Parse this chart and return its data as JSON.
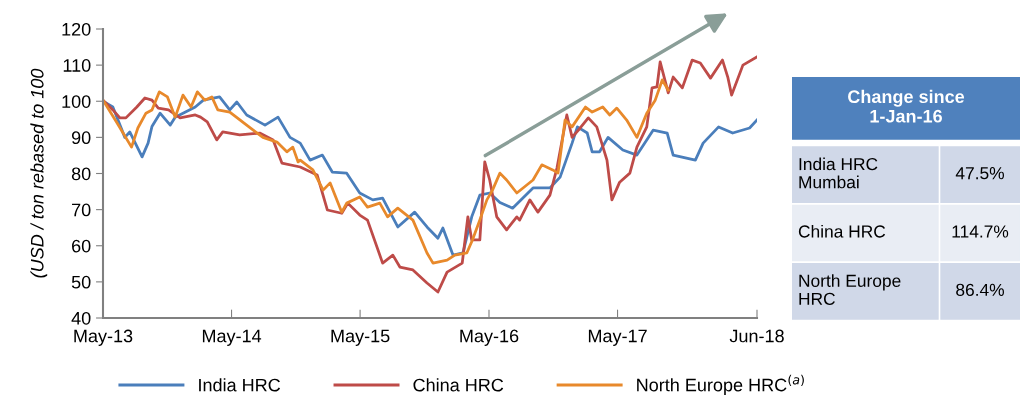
{
  "chart_data": [
    {
      "type": "line",
      "ylabel": "(USD / ton rebased to 100",
      "ylim": [
        40,
        120
      ],
      "yticks": [
        40,
        50,
        60,
        70,
        80,
        90,
        100,
        110,
        120
      ],
      "xlim": [
        "2013-05-01",
        "2018-06-01"
      ],
      "xticks": [
        {
          "value": "2013-05-01",
          "label": "May-13"
        },
        {
          "value": "2014-05-01",
          "label": "May-14"
        },
        {
          "value": "2015-05-01",
          "label": "May-15"
        },
        {
          "value": "2016-05-01",
          "label": "May-16"
        },
        {
          "value": "2017-05-01",
          "label": "May-17"
        },
        {
          "value": "2018-06-01",
          "label": "Jun-18"
        }
      ],
      "grid": false,
      "legend": "bottom",
      "marker": "none",
      "line_style": "solid",
      "series": [
        {
          "name": "India HRC",
          "color": "#4a7ebb",
          "x": [
            "2013-05-01",
            "2013-05-29",
            "2013-07-02",
            "2013-07-16",
            "2013-08-20",
            "2013-09-06",
            "2013-09-17",
            "2013-10-10",
            "2013-11-08",
            "2013-11-22",
            "2014-01-18",
            "2014-02-10",
            "2014-03-28",
            "2014-04-26",
            "2014-05-16",
            "2014-06-13",
            "2014-08-04",
            "2014-09-10",
            "2014-10-14",
            "2014-11-12",
            "2014-12-10",
            "2015-01-14",
            "2015-02-11",
            "2015-03-24",
            "2015-04-30",
            "2015-06-06",
            "2015-07-04",
            "2015-08-16",
            "2015-10-03",
            "2015-11-07",
            "2015-12-08",
            "2015-12-22",
            "2016-01-20",
            "2016-02-17",
            "2016-03-13",
            "2016-04-05",
            "2016-05-03",
            "2016-06-01",
            "2016-07-07",
            "2016-09-03",
            "2016-10-21",
            "2016-11-19",
            "2016-12-23",
            "2017-01-07",
            "2017-02-04",
            "2017-02-18",
            "2017-03-11",
            "2017-04-04",
            "2017-05-16",
            "2017-06-25",
            "2017-08-10",
            "2017-09-19",
            "2017-10-06",
            "2017-12-08",
            "2017-12-30",
            "2018-02-12",
            "2018-03-24",
            "2018-05-11",
            "2018-06-01"
          ],
          "values": [
            100,
            98.4,
            90,
            91.5,
            84.6,
            88.4,
            93,
            96.7,
            93.4,
            95.6,
            98.4,
            100.3,
            101.2,
            97.6,
            99.8,
            96.2,
            93.4,
            95.6,
            90,
            88.4,
            83.7,
            85.1,
            80.4,
            80.1,
            74.6,
            72.7,
            73.2,
            65.2,
            69.3,
            65.2,
            62.1,
            64.9,
            57.4,
            58,
            68,
            74,
            74.6,
            72,
            70.4,
            76,
            76,
            79,
            88.4,
            92.9,
            91.2,
            86,
            86,
            90,
            86.5,
            85.1,
            92,
            91.2,
            85.1,
            83.7,
            88.4,
            92.9,
            91.2,
            92.6,
            94.8
          ]
        },
        {
          "name": "China HRC",
          "color": "#be4b48",
          "x": [
            "2013-05-01",
            "2013-05-29",
            "2013-06-18",
            "2013-07-05",
            "2013-08-05",
            "2013-08-28",
            "2013-09-17",
            "2013-10-05",
            "2013-11-03",
            "2013-12-06",
            "2014-01-18",
            "2014-02-02",
            "2014-02-21",
            "2014-03-20",
            "2014-04-06",
            "2014-05-24",
            "2014-07-20",
            "2014-08-27",
            "2014-09-21",
            "2014-11-12",
            "2014-12-30",
            "2015-01-28",
            "2015-03-10",
            "2015-03-27",
            "2015-04-30",
            "2015-05-22",
            "2015-07-04",
            "2015-08-02",
            "2015-08-22",
            "2015-09-28",
            "2015-11-07",
            "2015-12-08",
            "2016-01-03",
            "2016-02-15",
            "2016-03-02",
            "2016-03-13",
            "2016-04-05",
            "2016-04-19",
            "2016-05-03",
            "2016-05-23",
            "2016-06-20",
            "2016-07-19",
            "2016-07-27",
            "2016-08-25",
            "2016-09-17",
            "2016-10-21",
            "2016-11-10",
            "2016-12-08",
            "2016-12-23",
            "2017-01-15",
            "2017-02-07",
            "2017-03-03",
            "2017-04-01",
            "2017-04-15",
            "2017-05-07",
            "2017-06-05",
            "2017-06-25",
            "2017-07-23",
            "2017-08-07",
            "2017-08-21",
            "2017-08-30",
            "2017-09-22",
            "2017-10-06",
            "2017-11-01",
            "2017-11-29",
            "2017-12-22",
            "2018-01-20",
            "2018-02-23",
            "2018-03-10",
            "2018-03-21",
            "2018-04-22",
            "2018-06-01"
          ],
          "values": [
            100.3,
            97.6,
            95.4,
            95.4,
            98.4,
            100.9,
            100.3,
            98.1,
            97.6,
            95.4,
            96.2,
            95.6,
            94.3,
            89.3,
            91.5,
            90.7,
            91.2,
            89.3,
            82.9,
            81.8,
            79.6,
            69.9,
            69,
            71.8,
            68.5,
            67.1,
            55.2,
            57.4,
            54.1,
            53.3,
            49.7,
            47.2,
            52.7,
            55.2,
            68,
            61.6,
            61.6,
            83.2,
            78.2,
            68,
            64.4,
            68,
            67.1,
            72.7,
            69.3,
            74,
            81.5,
            96.2,
            90,
            92.6,
            95.4,
            92.9,
            83.7,
            72.7,
            77.6,
            80.1,
            87.3,
            92.9,
            103.7,
            104,
            110.9,
            102.3,
            106.7,
            103.7,
            111.4,
            110.6,
            106.4,
            111.4,
            106.7,
            101.7,
            110,
            112.3
          ]
        },
        {
          "name": "North Europe HRC$^{(a)}$",
          "color": "#e8892b",
          "x": [
            "2013-05-01",
            "2013-05-24",
            "2013-06-10",
            "2013-07-21",
            "2013-08-08",
            "2013-08-31",
            "2013-09-17",
            "2013-10-08",
            "2013-10-31",
            "2013-11-22",
            "2013-12-14",
            "2014-01-06",
            "2014-01-24",
            "2014-02-14",
            "2014-03-06",
            "2014-03-23",
            "2014-04-26",
            "2014-06-13",
            "2014-07-29",
            "2014-09-07",
            "2014-10-05",
            "2014-10-22",
            "2014-11-06",
            "2014-11-12",
            "2014-12-18",
            "2015-01-16",
            "2015-02-05",
            "2015-03-10",
            "2015-03-24",
            "2015-04-30",
            "2015-05-22",
            "2015-06-26",
            "2015-07-18",
            "2015-08-16",
            "2015-09-28",
            "2015-11-07",
            "2015-11-24",
            "2016-01-03",
            "2016-01-25",
            "2016-02-28",
            "2016-03-15",
            "2016-04-05",
            "2016-04-25",
            "2016-05-11",
            "2016-06-01",
            "2016-06-20",
            "2016-07-19",
            "2016-09-03",
            "2016-09-28",
            "2016-10-29",
            "2016-11-13",
            "2016-12-03",
            "2016-12-23",
            "2017-01-30",
            "2017-02-18",
            "2017-03-20",
            "2017-04-09",
            "2017-04-29",
            "2017-05-27",
            "2017-06-25",
            "2017-07-23",
            "2017-08-16",
            "2017-09-05",
            "2017-09-22"
          ],
          "values": [
            100.3,
            96.7,
            94,
            87.3,
            92.6,
            96.7,
            97.6,
            102.6,
            101.2,
            95.6,
            101.7,
            98.4,
            102.6,
            100.3,
            101.2,
            97.6,
            97,
            93.4,
            90,
            88.7,
            86,
            87.3,
            83.2,
            83.7,
            81,
            75.4,
            77.4,
            69.3,
            71.8,
            73.5,
            70.7,
            71.8,
            68,
            70.4,
            67.1,
            58,
            55.2,
            56,
            57.4,
            58,
            61.6,
            67.1,
            72.7,
            75.4,
            80.1,
            78.2,
            74.6,
            78.2,
            82.4,
            81,
            80.1,
            94.8,
            92.9,
            98.4,
            97,
            98.4,
            96.2,
            98.1,
            94.8,
            90,
            96.7,
            100.3,
            105.9,
            103.1
          ]
        }
      ]
    },
    {
      "type": "other",
      "title": "Change since\n1-Jan-16",
      "categories": [
        "India HRC\nMumbai",
        "China HRC",
        "North Europe\nHRC"
      ],
      "value_labels": [
        "47.5%",
        "114.7%",
        "86.4%"
      ],
      "color": "#4f81bd",
      "colors": [
        "#d0d8e8",
        "#e9edf4",
        "#d0d8e8"
      ]
    }
  ]
}
